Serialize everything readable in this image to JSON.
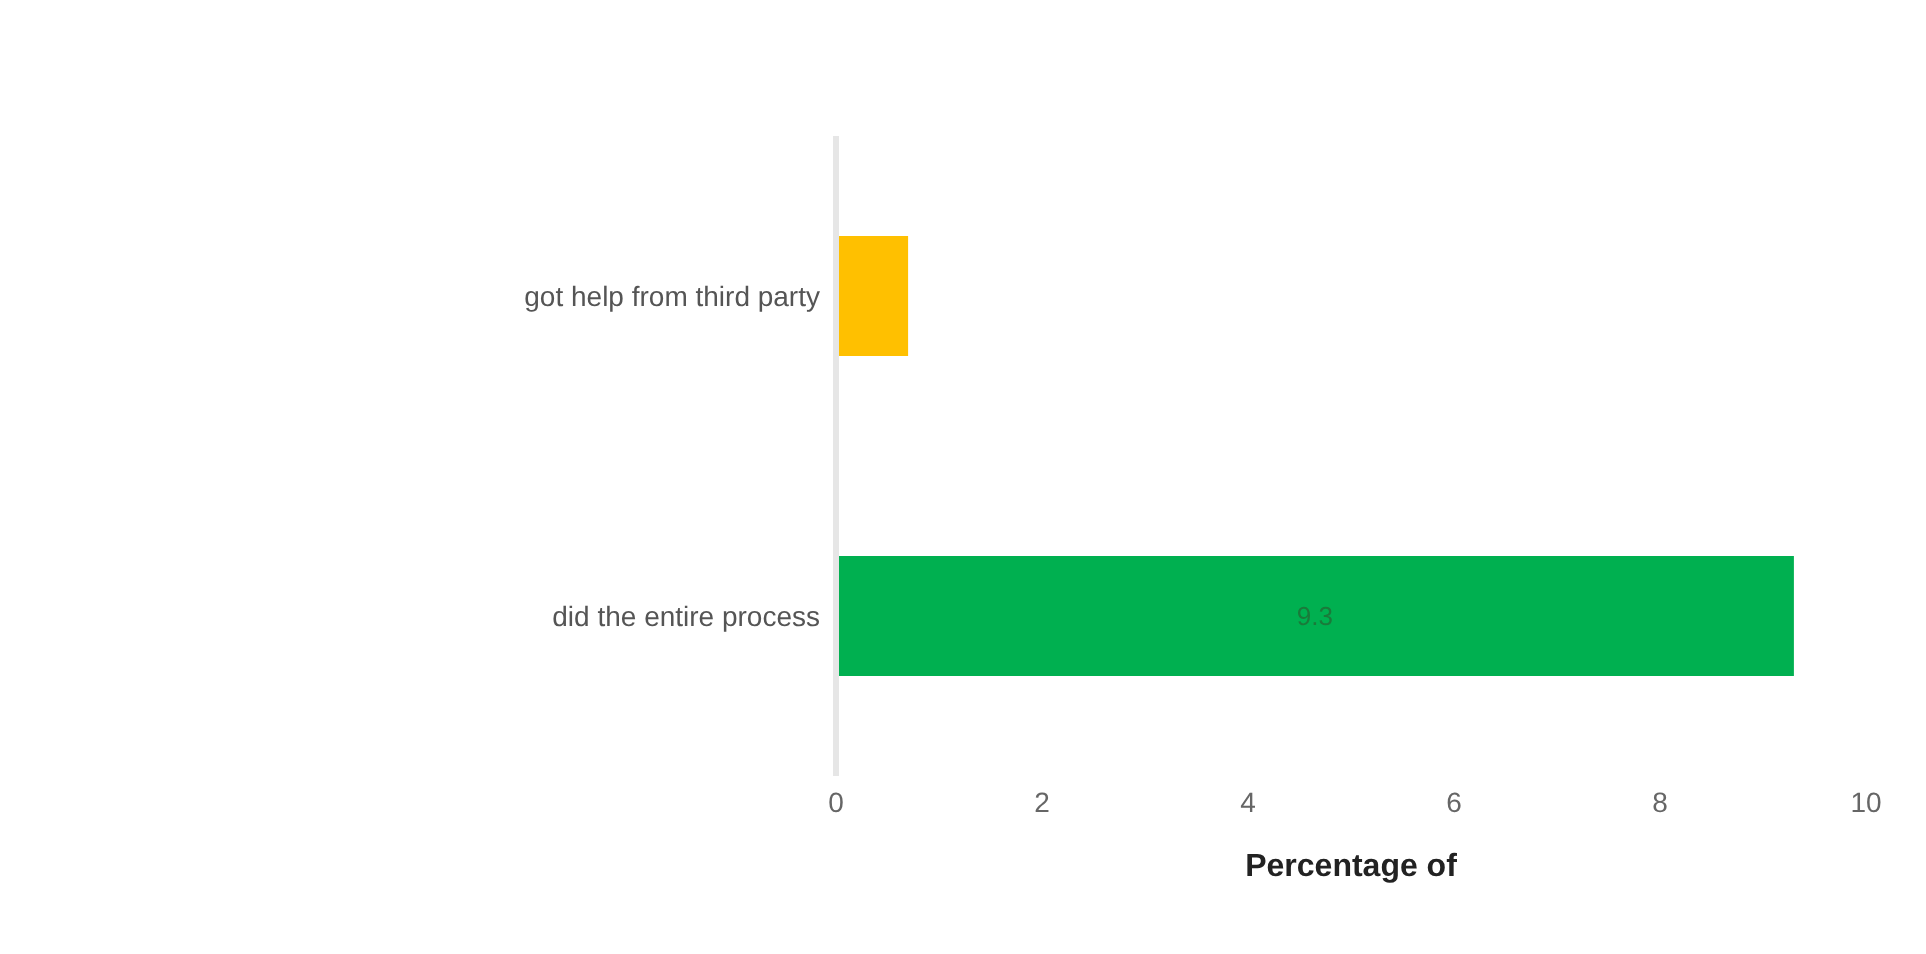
{
  "chart_data": {
    "type": "bar",
    "orientation": "horizontal",
    "categories": [
      "got help from third party",
      "did the entire process"
    ],
    "values": [
      0.7,
      9.3
    ],
    "colors": [
      "#ffc000",
      "#00b050"
    ],
    "value_labels": [
      null,
      "9.3"
    ],
    "xlim": [
      0,
      10
    ],
    "xticks": [
      0,
      2,
      4,
      6,
      8,
      10
    ],
    "xlabel": "Percentage of",
    "grid": false
  }
}
